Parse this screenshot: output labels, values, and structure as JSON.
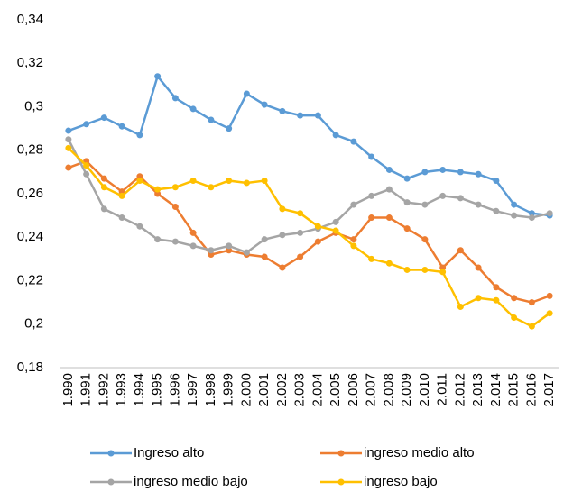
{
  "chart_data": {
    "type": "line",
    "categories": [
      "1.990",
      "1.991",
      "1.992",
      "1.993",
      "1.994",
      "1.995",
      "1.996",
      "1.997",
      "1.998",
      "1.999",
      "2.000",
      "2.001",
      "2.002",
      "2.003",
      "2.004",
      "2.005",
      "2.006",
      "2.007",
      "2.008",
      "2.009",
      "2.010",
      "2.011",
      "2.012",
      "2.013",
      "2.014",
      "2.015",
      "2.016",
      "2.017"
    ],
    "series": [
      {
        "name": "Ingreso alto",
        "color": "#5b9bd5",
        "values": [
          0.289,
          0.292,
          0.295,
          0.291,
          0.287,
          0.314,
          0.304,
          0.299,
          0.294,
          0.29,
          0.306,
          0.301,
          0.298,
          0.296,
          0.296,
          0.287,
          0.284,
          0.277,
          0.271,
          0.267,
          0.27,
          0.271,
          0.27,
          0.269,
          0.266,
          0.255,
          0.251,
          0.25
        ]
      },
      {
        "name": "ingreso medio alto",
        "color": "#ed7d31",
        "values": [
          0.272,
          0.275,
          0.267,
          0.261,
          0.268,
          0.26,
          0.254,
          0.242,
          0.232,
          0.234,
          0.232,
          0.231,
          0.226,
          0.231,
          0.238,
          0.242,
          0.239,
          0.249,
          0.249,
          0.244,
          0.239,
          0.226,
          0.234,
          0.226,
          0.217,
          0.212,
          0.21,
          0.213
        ]
      },
      {
        "name": "ingreso medio bajo",
        "color": "#a5a5a5",
        "values": [
          0.285,
          0.269,
          0.253,
          0.249,
          0.245,
          0.239,
          0.238,
          0.236,
          0.234,
          0.236,
          0.233,
          0.239,
          0.241,
          0.242,
          0.244,
          0.247,
          0.255,
          0.259,
          0.262,
          0.256,
          0.255,
          0.259,
          0.258,
          0.255,
          0.252,
          0.25,
          0.249,
          0.251
        ]
      },
      {
        "name": "ingreso bajo",
        "color": "#ffc000",
        "values": [
          0.281,
          0.273,
          0.263,
          0.259,
          0.266,
          0.262,
          0.263,
          0.266,
          0.263,
          0.266,
          0.265,
          0.266,
          0.253,
          0.251,
          0.245,
          0.243,
          0.236,
          0.23,
          0.228,
          0.225,
          0.225,
          0.224,
          0.208,
          0.212,
          0.211,
          0.203,
          0.199,
          0.205
        ]
      }
    ],
    "ylim": [
      0.18,
      0.34
    ],
    "yticks": [
      {
        "value": 0.18,
        "label": "0,18"
      },
      {
        "value": 0.2,
        "label": "0,2"
      },
      {
        "value": 0.22,
        "label": "0,22"
      },
      {
        "value": 0.24,
        "label": "0,24"
      },
      {
        "value": 0.26,
        "label": "0,26"
      },
      {
        "value": 0.28,
        "label": "0,28"
      },
      {
        "value": 0.3,
        "label": "0,3"
      },
      {
        "value": 0.32,
        "label": "0,32"
      },
      {
        "value": 0.34,
        "label": "0,34"
      }
    ],
    "grid": false,
    "legend": "bottom"
  }
}
